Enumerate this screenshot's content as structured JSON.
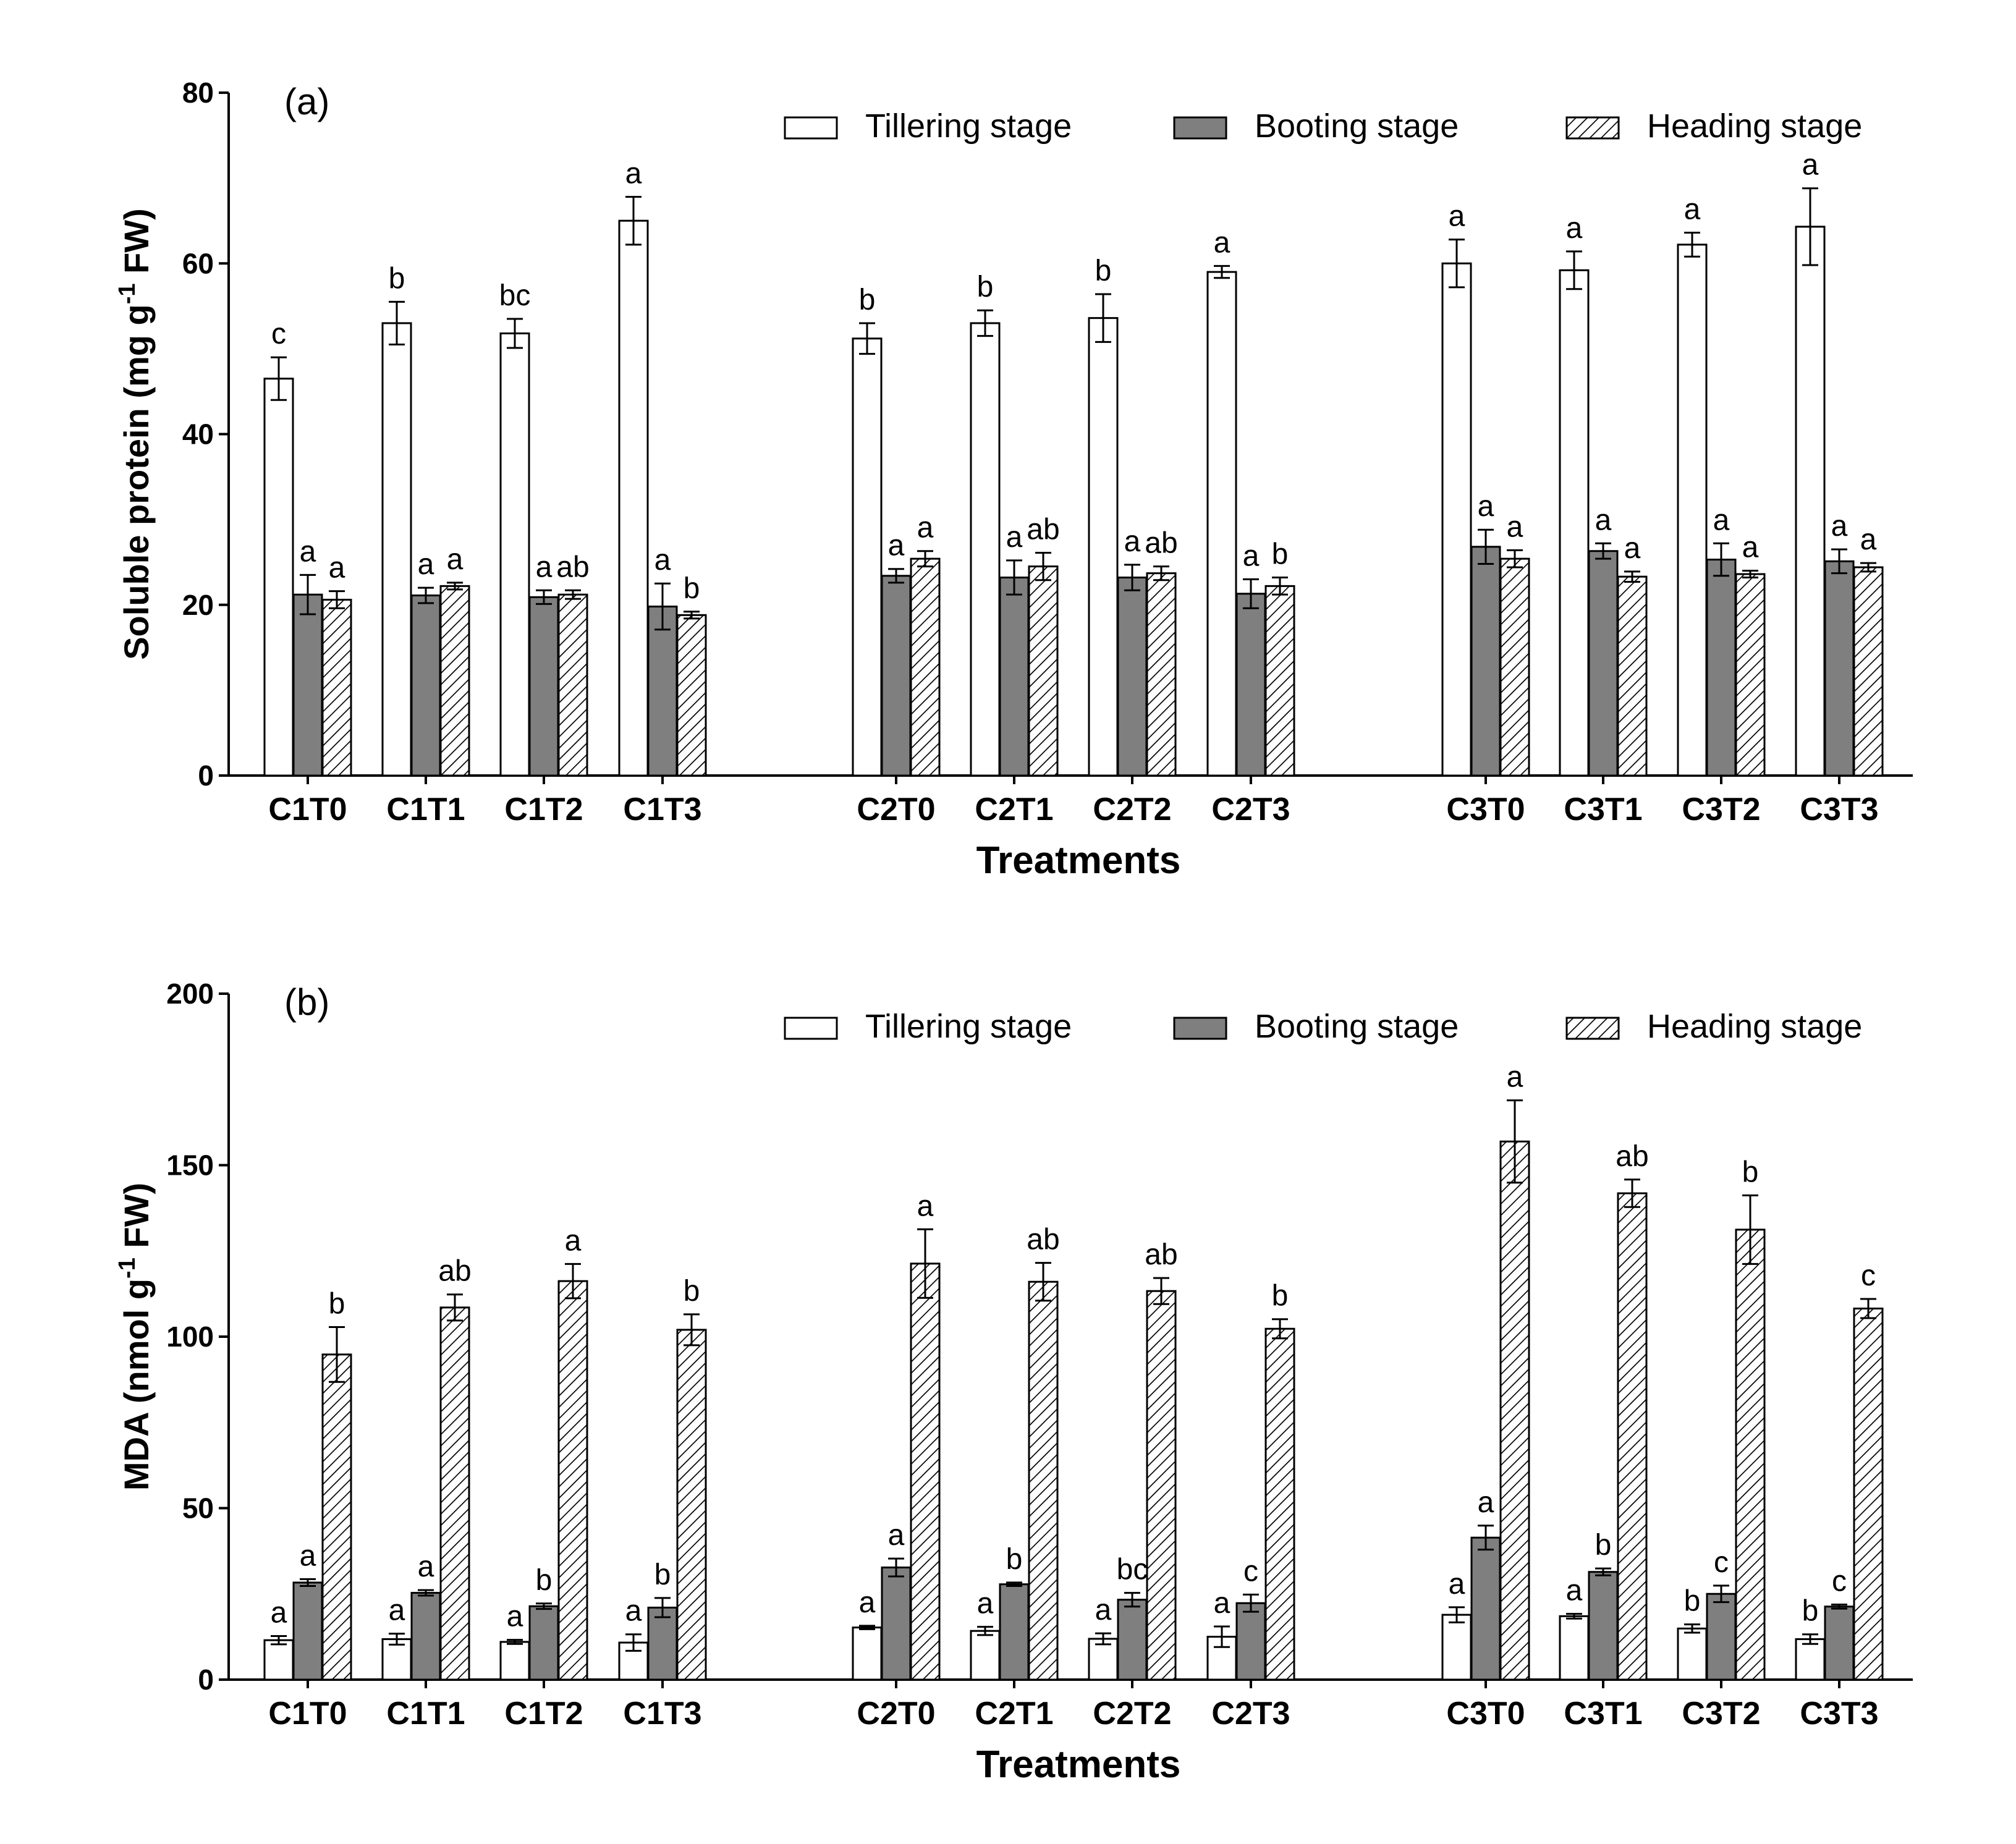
{
  "chart_data": [
    {
      "type": "bar",
      "panel_label": "(a)",
      "ylabel": {
        "main": "Soluble protein (mg g",
        "sup": "-1",
        "tail": " FW)"
      },
      "xlabel": "Treatments",
      "ylim": [
        0,
        80
      ],
      "yticks": [
        "0",
        "20",
        "40",
        "60",
        "80"
      ],
      "categories": [
        "C1T0",
        "C1T1",
        "C1T2",
        "C1T3",
        "C2T0",
        "C2T1",
        "C2T2",
        "C2T3",
        "C3T0",
        "C3T1",
        "C3T2",
        "C3T3"
      ],
      "series": [
        {
          "name": "Tillering stage",
          "values": [
            46.5,
            53,
            51.8,
            65,
            51.2,
            53,
            53.6,
            59,
            60,
            59.2,
            62.2,
            64.3
          ],
          "errors": [
            2.5,
            2.5,
            1.7,
            2.8,
            1.8,
            1.5,
            2.8,
            0.7,
            2.8,
            2.2,
            1.4,
            4.5
          ],
          "labels": [
            "c",
            "b",
            "bc",
            "a",
            "b",
            "b",
            "b",
            "a",
            "a",
            "a",
            "a",
            "a"
          ]
        },
        {
          "name": "Booting stage",
          "values": [
            21.2,
            21.1,
            20.9,
            19.8,
            23.4,
            23.2,
            23.2,
            21.3,
            26.8,
            26.3,
            25.3,
            25.1
          ],
          "errors": [
            2.3,
            0.9,
            0.8,
            2.7,
            0.8,
            2.0,
            1.5,
            1.7,
            2.0,
            0.9,
            1.9,
            1.4
          ],
          "labels": [
            "a",
            "a",
            "a",
            "a",
            "a",
            "a",
            "a",
            "a",
            "a",
            "a",
            "a",
            "a"
          ]
        },
        {
          "name": "Heading stage",
          "values": [
            20.6,
            22.2,
            21.2,
            18.8,
            25.4,
            24.5,
            23.7,
            22.2,
            25.4,
            23.3,
            23.6,
            24.4
          ],
          "errors": [
            1.0,
            0.4,
            0.5,
            0.4,
            0.9,
            1.6,
            0.8,
            1.0,
            1.0,
            0.6,
            0.4,
            0.5
          ],
          "labels": [
            "a",
            "a",
            "ab",
            "b",
            "a",
            "ab",
            "ab",
            "b",
            "a",
            "a",
            "a",
            "a"
          ]
        }
      ]
    },
    {
      "type": "bar",
      "panel_label": "(b)",
      "ylabel": {
        "main": "MDA (nmol g",
        "sup": "-1",
        "tail": " FW)"
      },
      "xlabel": "Treatments",
      "ylim": [
        0,
        200
      ],
      "yticks": [
        "0",
        "50",
        "100",
        "150",
        "200"
      ],
      "categories": [
        "C1T0",
        "C1T1",
        "C1T2",
        "C1T3",
        "C2T0",
        "C2T1",
        "C2T2",
        "C2T3",
        "C3T0",
        "C3T1",
        "C3T2",
        "C3T3"
      ],
      "series": [
        {
          "name": "Tillering stage",
          "values": [
            11.5,
            11.8,
            11.0,
            10.8,
            15.2,
            14.2,
            11.9,
            12.5,
            18.9,
            18.5,
            14.9,
            11.8
          ],
          "errors": [
            1.2,
            1.6,
            0.6,
            2.4,
            0.5,
            1.2,
            1.6,
            3.0,
            2.2,
            0.7,
            1.2,
            1.4
          ],
          "labels": [
            "a",
            "a",
            "a",
            "a",
            "a",
            "a",
            "a",
            "a",
            "a",
            "a",
            "b",
            "b"
          ]
        },
        {
          "name": "Booting stage",
          "values": [
            28.3,
            25.3,
            21.4,
            21.0,
            32.7,
            27.8,
            23.3,
            22.3,
            41.4,
            31.4,
            25.0,
            21.3
          ],
          "errors": [
            1.0,
            0.8,
            0.8,
            2.8,
            2.6,
            0.5,
            2.0,
            2.5,
            3.5,
            1.0,
            2.4,
            0.6
          ],
          "labels": [
            "a",
            "a",
            "b",
            "b",
            "a",
            "b",
            "bc",
            "c",
            "a",
            "b",
            "c",
            "c"
          ]
        },
        {
          "name": "Heading stage",
          "values": [
            94.8,
            108.5,
            116.2,
            102.0,
            121.3,
            116.0,
            113.3,
            102.3,
            156.9,
            141.8,
            131.2,
            108.2
          ],
          "errors": [
            8.0,
            3.8,
            5.0,
            4.5,
            10.0,
            5.5,
            3.8,
            2.8,
            12.0,
            4.0,
            10.0,
            2.8
          ],
          "labels": [
            "b",
            "ab",
            "a",
            "b",
            "a",
            "ab",
            "ab",
            "b",
            "a",
            "ab",
            "b",
            "c"
          ]
        }
      ]
    }
  ]
}
